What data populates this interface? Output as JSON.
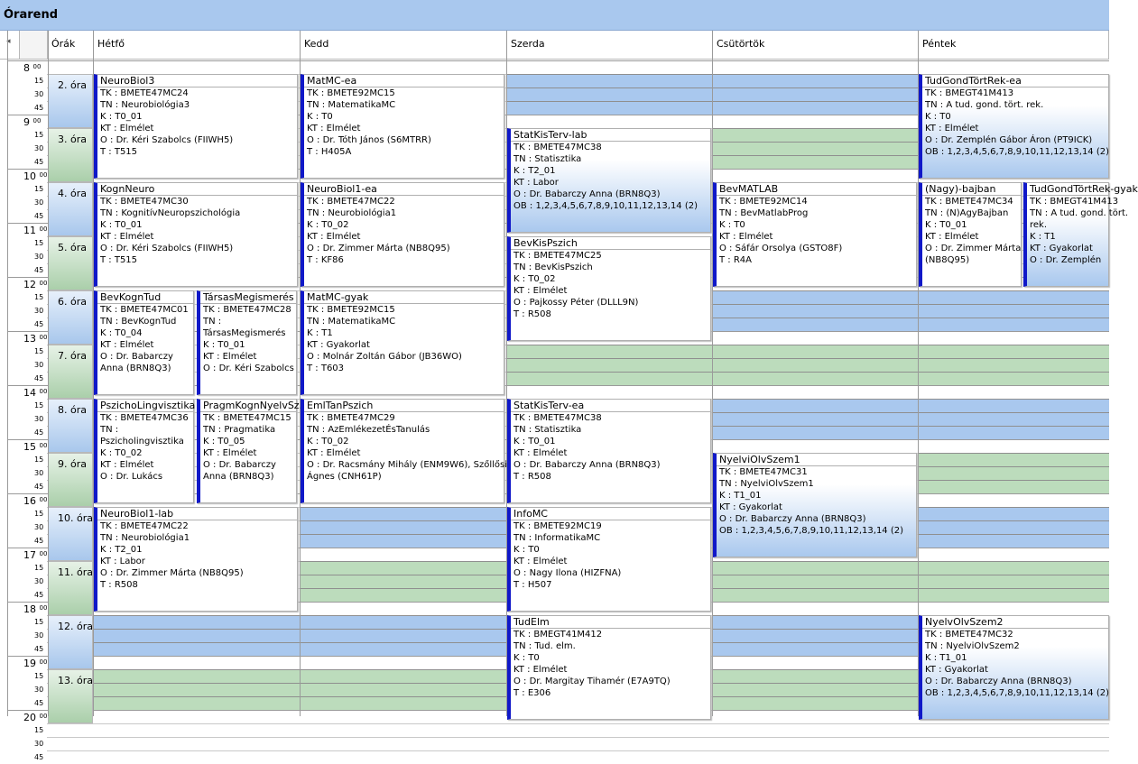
{
  "window": {
    "title": "Órarend"
  },
  "headers": {
    "scroll_arrow": "◂",
    "orak": "Órák",
    "days": [
      "Hétfő",
      "Kedd",
      "Szerda",
      "Csütörtök",
      "Péntek"
    ]
  },
  "hours": [
    "8",
    "9",
    "10",
    "11",
    "12",
    "13",
    "14",
    "15",
    "16",
    "17",
    "18",
    "19",
    "20"
  ],
  "hour_suffix": "00",
  "minutes": [
    "15",
    "30",
    "45"
  ],
  "periods": [
    "2. óra",
    "3. óra",
    "4. óra",
    "5. óra",
    "6. óra",
    "7. óra",
    "8. óra",
    "9. óra",
    "10. óra",
    "11. óra",
    "12. óra",
    "13. óra"
  ],
  "colors": {
    "accent": "#1018c8",
    "band_blue": "#a9c8ee",
    "band_green": "#bcdcbc",
    "title_bg": "#a9c8ee"
  },
  "events": [
    {
      "id": "neurobiol3",
      "title": "NeuroBiol3",
      "lines": [
        "TK : BMETE47MC24",
        "TN : Neurobiológia3",
        "K : T0_01",
        "KT : Elmélet",
        "O : Dr. Kéri Szabolcs (FIIWH5)",
        "T : T515"
      ]
    },
    {
      "id": "matmc-ea",
      "title": "MatMC-ea",
      "lines": [
        "TK : BMETE92MC15",
        "TN : MatematikaMC",
        "K : T0",
        "KT : Elmélet",
        "O : Dr. Tóth János (S6MTRR)",
        "T : H405A"
      ]
    },
    {
      "id": "tudgond-ea",
      "title": "TudGondTörtRek-ea",
      "lines": [
        "TK : BMEGT41M413",
        "TN : A tud. gond. tört. rek.",
        "K : T0",
        "KT : Elmélet",
        "O : Dr. Zemplén Gábor Áron (PT9ICK)",
        "OB : 1,2,3,4,5,6,7,8,9,10,11,12,13,14 (2)"
      ]
    },
    {
      "id": "statkisterv-lab",
      "title": "StatKisTerv-lab",
      "lines": [
        "TK : BMETE47MC38",
        "TN : Statisztika",
        "K : T2_01",
        "KT : Labor",
        "O : Dr. Babarczy Anna (BRN8Q3)",
        "OB : 1,2,3,4,5,6,7,8,9,10,11,12,13,14 (2)"
      ]
    },
    {
      "id": "kognneuro",
      "title": "KognNeuro",
      "lines": [
        "TK : BMETE47MC30",
        "TN : KognitívNeuropszichológia",
        "K : T0_01",
        "KT : Elmélet",
        "O : Dr. Kéri Szabolcs (FIIWH5)",
        "T : T515"
      ]
    },
    {
      "id": "neurobiol1-ea",
      "title": "NeuroBiol1-ea",
      "lines": [
        "TK : BMETE47MC22",
        "TN : Neurobiológia1",
        "K : T0_02",
        "KT : Elmélet",
        "O : Dr. Zimmer Márta (NB8Q95)",
        "T : KF86"
      ]
    },
    {
      "id": "bevmatlab",
      "title": "BevMATLAB",
      "lines": [
        "TK : BMETE92MC14",
        "TN : BevMatlabProg",
        "K : T0",
        "KT : Elmélet",
        "O : Sáfár Orsolya (GSTO8F)",
        "T : R4A"
      ]
    },
    {
      "id": "nagy-bajban",
      "title": "(Nagy)-bajban",
      "lines": [
        "TK : BMETE47MC34",
        "TN : (N)AgyBajban",
        "K : T0_01",
        "KT : Elmélet",
        "O : Dr. Zimmer Márta",
        "(NB8Q95)"
      ]
    },
    {
      "id": "tudgond-gyak",
      "title": "TudGondTörtRek-gyak",
      "lines": [
        "TK : BMEGT41M413",
        "TN : A tud. gond. tört.",
        "rek.",
        "K : T1",
        "KT : Gyakorlat",
        "O : Dr. Zemplén"
      ]
    },
    {
      "id": "bevkispszich",
      "title": "BevKisPszich",
      "lines": [
        "TK : BMETE47MC25",
        "TN : BevKisPszich",
        "K : T0_02",
        "KT : Elmélet",
        "O : Pajkossy Péter (DLLL9N)",
        "T : R508"
      ]
    },
    {
      "id": "bevkogntud",
      "title": "BevKognTud",
      "lines": [
        "TK : BMETE47MC01",
        "TN : BevKognTud",
        "K : T0_04",
        "KT : Elmélet",
        "O : Dr. Babarczy",
        "Anna (BRN8Q3)"
      ]
    },
    {
      "id": "tarsasmeg",
      "title": "TársasMegismerés",
      "lines": [
        "TK : BMETE47MC28",
        "TN :",
        "TársasMegismerés",
        "K : T0_01",
        "KT : Elmélet",
        "O : Dr. Kéri Szabolcs"
      ]
    },
    {
      "id": "matmc-gyak",
      "title": "MatMC-gyak",
      "lines": [
        "TK : BMETE92MC15",
        "TN : MatematikaMC",
        "K : T1",
        "KT : Gyakorlat",
        "O : Molnár Zoltán Gábor (JB36WO)",
        "T : T603"
      ]
    },
    {
      "id": "pszicholing",
      "title": "PszichoLingvisztika",
      "lines": [
        "TK : BMETE47MC36",
        "TN :",
        "Pszicholingvisztika",
        "K : T0_02",
        "KT : Elmélet",
        "O : Dr. Lukács"
      ]
    },
    {
      "id": "pragmkogn",
      "title": "PragmKognNyelvSz...",
      "lines": [
        "TK : BMETE47MC15",
        "TN : Pragmatika",
        "K : T0_05",
        "KT : Elmélet",
        "O : Dr. Babarczy",
        "Anna (BRN8Q3)"
      ]
    },
    {
      "id": "emltanpszich",
      "title": "EmlTanPszich",
      "lines": [
        "TK : BMETE47MC29",
        "TN : AzEmlékezetÉsTanulás",
        "K : T0_02",
        "KT : Elmélet",
        "O : Dr. Racsmány Mihály (ENM9W6), Szőllősi",
        "Ágnes (CNH61P)"
      ]
    },
    {
      "id": "statkisterv-ea",
      "title": "StatKisTerv-ea",
      "lines": [
        "TK : BMETE47MC38",
        "TN : Statisztika",
        "K : T0_01",
        "KT : Elmélet",
        "O : Dr. Babarczy Anna (BRN8Q3)",
        "T : R508"
      ]
    },
    {
      "id": "nyelviolvszem1",
      "title": "NyelviOlvSzem1",
      "lines": [
        "TK : BMETE47MC31",
        "TN : NyelviOlvSzem1",
        "K : T1_01",
        "KT : Gyakorlat",
        "O : Dr. Babarczy Anna (BRN8Q3)",
        "OB : 1,2,3,4,5,6,7,8,9,10,11,12,13,14 (2)"
      ]
    },
    {
      "id": "neurobiol1-lab",
      "title": "NeuroBiol1-lab",
      "lines": [
        "TK : BMETE47MC22",
        "TN : Neurobiológia1",
        "K : T2_01",
        "KT : Labor",
        "O : Dr. Zimmer Márta (NB8Q95)",
        "T : R508"
      ]
    },
    {
      "id": "infomc",
      "title": "InfoMC",
      "lines": [
        "TK : BMETE92MC19",
        "TN : InformatikaMC",
        "K : T0",
        "KT : Elmélet",
        "O : Nagy Ilona (HIZFNA)",
        "T : H507"
      ]
    },
    {
      "id": "tudelm",
      "title": "TudElm",
      "lines": [
        "TK : BMEGT41M412",
        "TN : Tud. elm.",
        "K : T0",
        "KT : Elmélet",
        "O : Dr. Margitay Tihamér (E7A9TQ)",
        "T : E306"
      ]
    },
    {
      "id": "nyelvolvszem2",
      "title": "NyelvOlvSzem2",
      "lines": [
        "TK : BMETE47MC32",
        "TN : NyelviOlvSzem2",
        "K : T1_01",
        "KT : Gyakorlat",
        "O : Dr. Babarczy Anna (BRN8Q3)",
        "OB : 1,2,3,4,5,6,7,8,9,10,11,12,13,14 (2)"
      ]
    }
  ]
}
